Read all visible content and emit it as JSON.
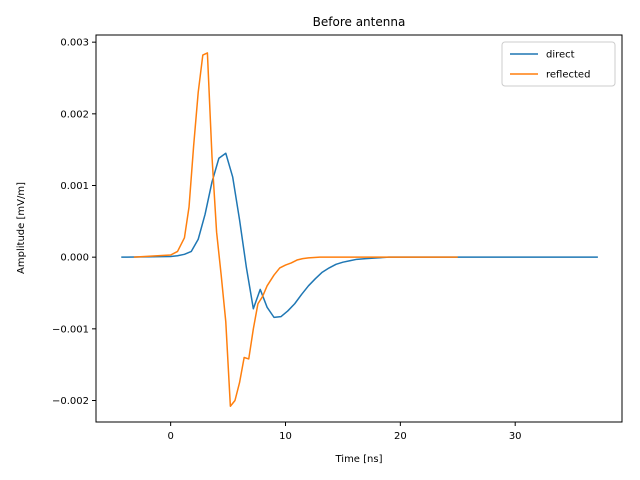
{
  "chart_data": {
    "type": "line",
    "title": "Before antenna",
    "xlabel": "Time [ns]",
    "ylabel": "Amplitude [mV/m]",
    "xlim": [
      -6.5,
      39.3
    ],
    "ylim": [
      -0.0023,
      0.0031
    ],
    "xticks": [
      0,
      10,
      20,
      30
    ],
    "xtick_labels": [
      "0",
      "10",
      "20",
      "30"
    ],
    "yticks": [
      -0.002,
      -0.001,
      0.0,
      0.001,
      0.002,
      0.003
    ],
    "ytick_labels": [
      "−0.002",
      "−0.001",
      "0.000",
      "0.001",
      "0.002",
      "0.003"
    ],
    "grid": false,
    "legend_position": "top-right",
    "series": [
      {
        "name": "direct",
        "color": "#1f77b4",
        "x": [
          -4.3,
          0,
          0.6,
          1.2,
          1.8,
          2.4,
          3.0,
          3.6,
          4.2,
          4.8,
          5.4,
          6.0,
          6.6,
          7.2,
          7.8,
          8.4,
          9.0,
          9.6,
          10.2,
          10.8,
          11.4,
          12.0,
          12.6,
          13.2,
          13.8,
          14.4,
          15.0,
          15.6,
          16.2,
          17.0,
          18.0,
          19.0,
          20.0,
          22.0,
          25.0,
          30.0,
          37.2
        ],
        "y": [
          0,
          1e-05,
          2e-05,
          4e-05,
          8e-05,
          0.00025,
          0.0006,
          0.00105,
          0.00138,
          0.00145,
          0.00112,
          0.00052,
          -0.00015,
          -0.00072,
          -0.00045,
          -0.0007,
          -0.00084,
          -0.00083,
          -0.00075,
          -0.00065,
          -0.00052,
          -0.0004,
          -0.0003,
          -0.00021,
          -0.00015,
          -0.0001,
          -7e-05,
          -5e-05,
          -3e-05,
          -2e-05,
          -1e-05,
          0,
          0,
          0,
          0,
          0,
          0
        ]
      },
      {
        "name": "reflected",
        "color": "#ff7f0e",
        "x": [
          -3.2,
          0,
          0.6,
          1.2,
          1.6,
          2.0,
          2.4,
          2.8,
          3.2,
          3.6,
          4.0,
          4.4,
          4.8,
          5.2,
          5.6,
          6.0,
          6.4,
          6.8,
          7.2,
          7.6,
          8.0,
          8.4,
          9.0,
          9.5,
          10.0,
          10.5,
          11.0,
          11.5,
          12.0,
          13.0,
          14.0,
          15.0,
          17.0,
          20.0,
          25.0
        ],
        "y": [
          0,
          3e-05,
          8e-05,
          0.00027,
          0.0007,
          0.00155,
          0.0023,
          0.00282,
          0.00285,
          0.0014,
          0.00035,
          -0.00025,
          -0.0009,
          -0.00208,
          -0.002,
          -0.00175,
          -0.0014,
          -0.00142,
          -0.001,
          -0.00065,
          -0.00055,
          -0.0004,
          -0.00025,
          -0.00015,
          -0.00011,
          -8e-05,
          -4e-05,
          -2e-05,
          -1e-05,
          0,
          0,
          0,
          0,
          0,
          0
        ]
      }
    ]
  }
}
